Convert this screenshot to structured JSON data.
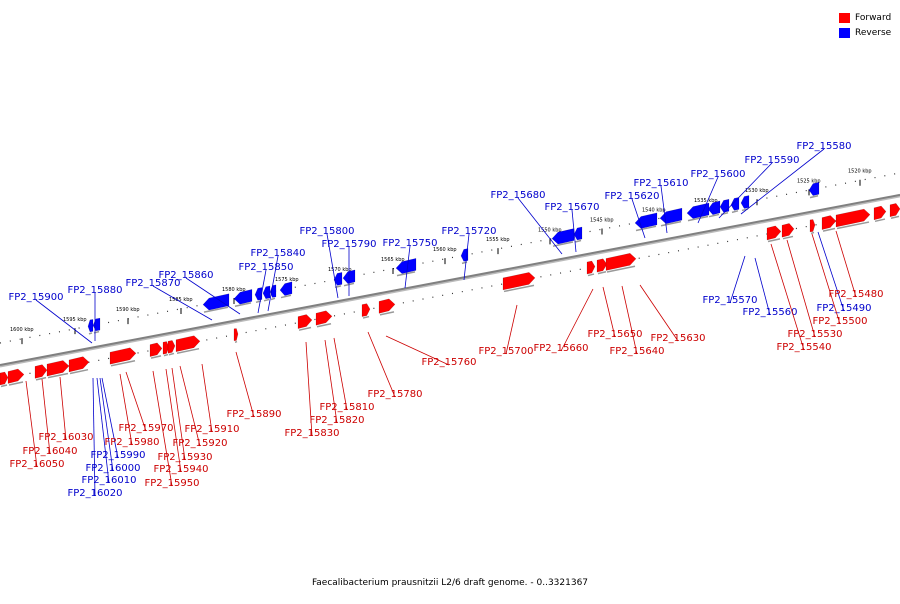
{
  "caption": "Faecalibacterium prausnitzii L2/6 draft genome. - 0..3321367",
  "legend": [
    {
      "label": "Forward",
      "color": "#ff0000"
    },
    {
      "label": "Reverse",
      "color": "#0000ff"
    }
  ],
  "colors": {
    "forward": "#ff0000",
    "reverse": "#0000ff",
    "forward_label": "#cc0000",
    "reverse_label": "#0000cc",
    "axis": "#808080"
  },
  "ticks": [
    "1600 kbp",
    "1595 kbp",
    "1590 kbp",
    "1585 kbp",
    "1580 kbp",
    "1575 kbp",
    "1570 kbp",
    "1565 kbp",
    "1560 kbp",
    "1555 kbp",
    "1550 kbp",
    "1545 kbp",
    "1540 kbp",
    "1535 kbp",
    "1530 kbp",
    "1525 kbp",
    "1520 kbp"
  ],
  "reverse_genes": [
    "FP2_15900",
    "FP2_15880",
    "FP2_15870",
    "FP2_15860",
    "FP2_15850",
    "FP2_15840",
    "FP2_15800",
    "FP2_15790",
    "FP2_15750",
    "FP2_15720",
    "FP2_15680",
    "FP2_15670",
    "FP2_15620",
    "FP2_15610",
    "FP2_15600",
    "FP2_15590",
    "FP2_15580"
  ],
  "reverse_genes_below": [
    "FP2_15570",
    "FP2_15560",
    "FP2_15490",
    "FP2_16000",
    "FP2_16010",
    "FP2_16020",
    "FP2_15990"
  ],
  "forward_genes": [
    "FP2_16030",
    "FP2_16040",
    "FP2_16050",
    "FP2_15980",
    "FP2_15970",
    "FP2_15950",
    "FP2_15940",
    "FP2_15930",
    "FP2_15920",
    "FP2_15910",
    "FP2_15890",
    "FP2_15830",
    "FP2_15820",
    "FP2_15810",
    "FP2_15780",
    "FP2_15760",
    "FP2_15700",
    "FP2_15660",
    "FP2_15650",
    "FP2_15640",
    "FP2_15630",
    "FP2_15540",
    "FP2_15530",
    "FP2_15500",
    "FP2_15480"
  ]
}
